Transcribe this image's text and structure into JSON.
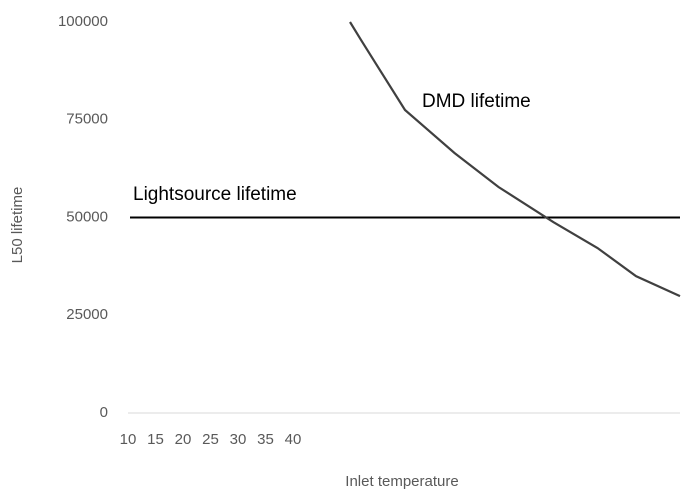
{
  "chart_data": {
    "type": "line",
    "x_label": "Inlet temperature",
    "y_label": "L50 lifetime",
    "xlim": [
      10,
      110
    ],
    "xticks": [
      10,
      15,
      20,
      25,
      30,
      35,
      40
    ],
    "ylim": [
      0,
      100000
    ],
    "yticks": [
      0,
      25000,
      50000,
      75000,
      100000
    ],
    "grid": false,
    "series": [
      {
        "name": "Lightsource lifetime",
        "color": "#000000",
        "x": [
          10,
          110
        ],
        "values": [
          50000,
          50000
        ]
      },
      {
        "name": "DMD lifetime",
        "color": "#404040",
        "x": [
          50,
          52,
          60,
          69,
          77,
          87,
          95,
          102,
          110
        ],
        "values": [
          100000,
          95400,
          77500,
          66500,
          57800,
          48800,
          42200,
          35000,
          29900
        ]
      }
    ]
  }
}
